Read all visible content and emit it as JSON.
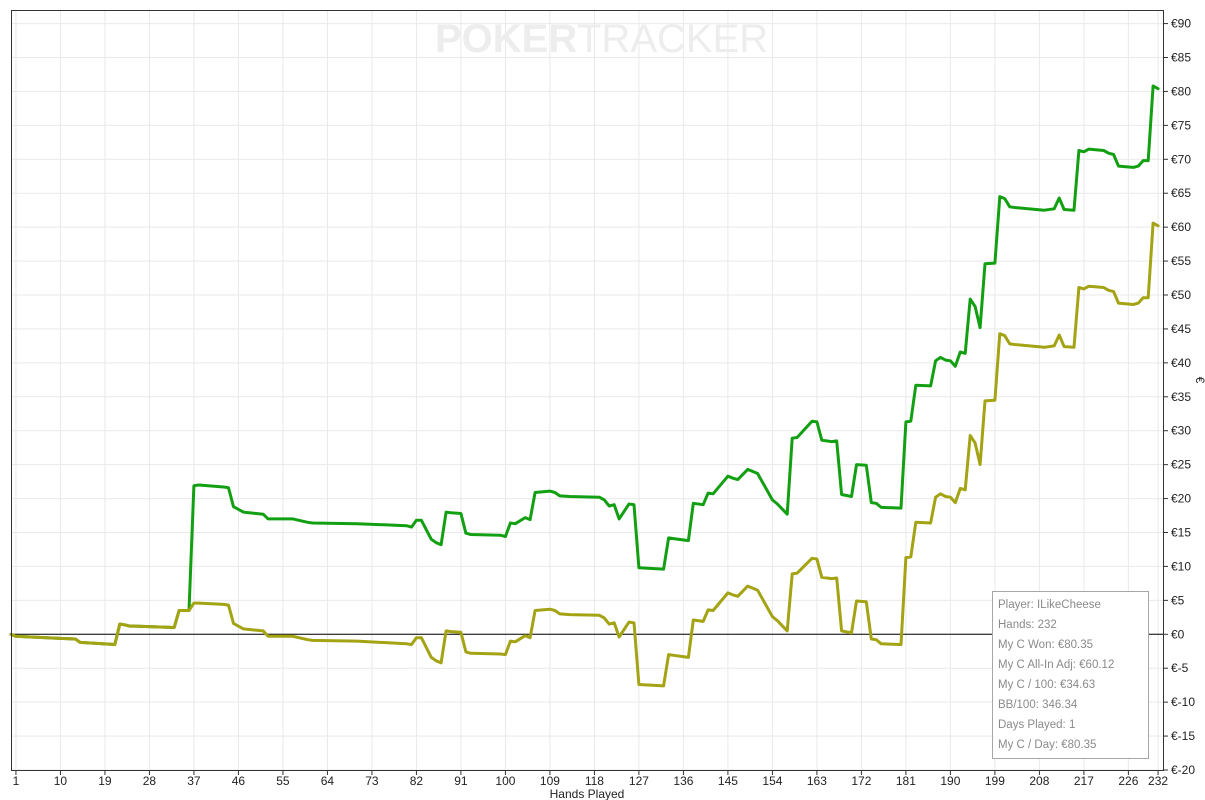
{
  "logo": {
    "part1": "POKER",
    "part2": "TRACKER"
  },
  "chart_data": {
    "type": "line",
    "xlabel": "Hands Played",
    "ylabel": "€",
    "xlim": [
      0,
      233
    ],
    "ylim": [
      -20,
      92
    ],
    "x_ticks": [
      1,
      10,
      19,
      28,
      37,
      46,
      55,
      64,
      73,
      82,
      91,
      100,
      109,
      118,
      127,
      136,
      145,
      154,
      163,
      172,
      181,
      190,
      199,
      208,
      217,
      226,
      232
    ],
    "y_ticks": [
      -20,
      -15,
      -10,
      -5,
      0,
      5,
      10,
      15,
      20,
      25,
      30,
      35,
      40,
      45,
      50,
      55,
      60,
      65,
      70,
      75,
      80,
      85,
      90
    ],
    "y_tick_labels": [
      "€-20",
      "€-15",
      "€-10",
      "€-5",
      "€0",
      "€5",
      "€10",
      "€15",
      "€20",
      "€25",
      "€30",
      "€35",
      "€40",
      "€45",
      "€50",
      "€55",
      "€60",
      "€65",
      "€70",
      "€75",
      "€80",
      "€85",
      "€90"
    ],
    "grid": true,
    "colors": {
      "won": "#12a012",
      "allin": "#a3a314",
      "zero_line": "#000000",
      "grid": "#e9e9e9"
    },
    "series": [
      {
        "key": "won",
        "x": [
          0,
          1,
          4,
          10,
          13,
          14,
          21,
          22,
          23,
          24,
          25,
          33,
          34,
          36,
          37,
          38,
          43,
          44,
          45,
          47,
          51,
          52,
          57,
          60,
          61,
          70,
          80,
          81,
          82,
          83,
          85,
          86,
          87,
          88,
          89,
          91,
          92,
          93,
          99,
          100,
          101,
          102,
          104,
          105,
          106,
          109,
          110,
          111,
          113,
          119,
          120,
          121,
          122,
          123,
          125,
          126,
          127,
          132,
          133,
          134,
          137,
          138,
          140,
          141,
          142,
          145,
          146,
          147,
          149,
          150,
          151,
          154,
          155,
          157,
          158,
          159,
          162,
          163,
          164,
          166,
          167,
          168,
          170,
          171,
          173,
          174,
          175,
          176,
          180,
          181,
          182,
          183,
          186,
          187,
          188,
          189,
          190,
          191,
          192,
          193,
          194,
          195,
          196,
          197,
          199,
          200,
          201,
          202,
          203,
          209,
          211,
          212,
          213,
          215,
          216,
          217,
          218,
          221,
          222,
          223,
          224,
          227,
          228,
          229,
          230,
          231,
          232
        ],
        "y": [
          0,
          -0.3,
          -0.4,
          -0.6,
          -0.7,
          -1.2,
          -1.5,
          1.5,
          1.4,
          1.2,
          1.2,
          1.0,
          3.5,
          3.5,
          21.9,
          22.0,
          21.7,
          21.6,
          18.8,
          18.0,
          17.7,
          17.0,
          17.0,
          16.5,
          16.4,
          16.3,
          16.0,
          15.8,
          16.8,
          16.8,
          14.0,
          13.5,
          13.2,
          18.0,
          17.9,
          17.8,
          14.9,
          14.7,
          14.6,
          14.4,
          16.4,
          16.3,
          17.2,
          16.9,
          20.9,
          21.1,
          20.9,
          20.4,
          20.3,
          20.2,
          19.8,
          18.9,
          19.1,
          17.0,
          19.2,
          19.1,
          9.8,
          9.6,
          14.2,
          14.1,
          13.8,
          19.3,
          19.1,
          20.8,
          20.7,
          23.3,
          23.0,
          22.8,
          24.3,
          24.0,
          23.7,
          19.8,
          19.2,
          17.7,
          28.9,
          29.0,
          31.4,
          31.3,
          28.6,
          28.4,
          28.5,
          20.6,
          20.3,
          25.0,
          24.9,
          19.4,
          19.3,
          18.7,
          18.6,
          31.3,
          31.4,
          36.7,
          36.6,
          40.3,
          40.8,
          40.4,
          40.3,
          39.5,
          41.6,
          41.4,
          49.4,
          48.3,
          45.2,
          54.6,
          54.7,
          64.5,
          64.2,
          63.0,
          62.9,
          62.5,
          62.7,
          64.3,
          62.6,
          62.5,
          71.3,
          71.1,
          71.5,
          71.3,
          70.9,
          70.7,
          69.0,
          68.8,
          69.0,
          69.8,
          69.8,
          80.8,
          80.4
        ]
      },
      {
        "key": "allin",
        "x": [
          0,
          1,
          4,
          10,
          13,
          14,
          21,
          22,
          23,
          24,
          25,
          33,
          34,
          36,
          37,
          38,
          43,
          44,
          45,
          47,
          51,
          52,
          57,
          60,
          61,
          70,
          80,
          81,
          82,
          83,
          85,
          86,
          87,
          88,
          89,
          91,
          92,
          93,
          99,
          100,
          101,
          102,
          104,
          105,
          106,
          109,
          110,
          111,
          113,
          119,
          120,
          121,
          122,
          123,
          125,
          126,
          127,
          132,
          133,
          134,
          137,
          138,
          140,
          141,
          142,
          145,
          146,
          147,
          149,
          150,
          151,
          154,
          155,
          157,
          158,
          159,
          162,
          163,
          164,
          166,
          167,
          168,
          170,
          171,
          173,
          174,
          175,
          176,
          180,
          181,
          182,
          183,
          186,
          187,
          188,
          189,
          190,
          191,
          192,
          193,
          194,
          195,
          196,
          197,
          199,
          200,
          201,
          202,
          203,
          209,
          211,
          212,
          213,
          215,
          216,
          217,
          218,
          221,
          222,
          223,
          224,
          227,
          228,
          229,
          230,
          231,
          232
        ],
        "y": [
          0,
          -0.3,
          -0.4,
          -0.6,
          -0.7,
          -1.2,
          -1.5,
          1.5,
          1.4,
          1.2,
          1.2,
          1.0,
          3.5,
          3.5,
          4.6,
          4.6,
          4.4,
          4.3,
          1.6,
          0.8,
          0.5,
          -0.3,
          -0.3,
          -0.8,
          -0.9,
          -1.0,
          -1.4,
          -1.5,
          -0.5,
          -0.5,
          -3.4,
          -3.9,
          -4.2,
          0.5,
          0.4,
          0.3,
          -2.6,
          -2.8,
          -2.9,
          -3.0,
          -1.0,
          -1.1,
          -0.2,
          -0.5,
          3.5,
          3.7,
          3.5,
          3.0,
          2.9,
          2.8,
          2.4,
          1.5,
          1.7,
          -0.4,
          1.8,
          1.7,
          -7.4,
          -7.6,
          -3.0,
          -3.1,
          -3.4,
          2.1,
          1.9,
          3.6,
          3.5,
          6.1,
          5.8,
          5.6,
          7.1,
          6.8,
          6.5,
          2.6,
          2.0,
          0.5,
          8.9,
          9.0,
          11.2,
          11.1,
          8.4,
          8.2,
          8.3,
          0.5,
          0.2,
          4.9,
          4.8,
          -0.7,
          -0.8,
          -1.4,
          -1.5,
          11.3,
          11.4,
          16.5,
          16.4,
          20.2,
          20.7,
          20.3,
          20.2,
          19.4,
          21.5,
          21.3,
          29.3,
          28.2,
          25.0,
          34.4,
          34.5,
          44.3,
          44.0,
          42.8,
          42.7,
          42.3,
          42.5,
          44.1,
          42.4,
          42.3,
          51.1,
          50.9,
          51.3,
          51.1,
          50.7,
          50.5,
          48.8,
          48.6,
          48.8,
          49.6,
          49.6,
          60.6,
          60.2
        ]
      }
    ]
  },
  "info_box": {
    "lines": [
      "Player: ILikeCheese",
      "Hands: 232",
      "My C Won: €80.35",
      "My C All-In Adj: €60.12",
      "My C / 100: €34.63",
      "BB/100: 346.34",
      "Days Played: 1",
      "My C / Day: €80.35"
    ]
  }
}
